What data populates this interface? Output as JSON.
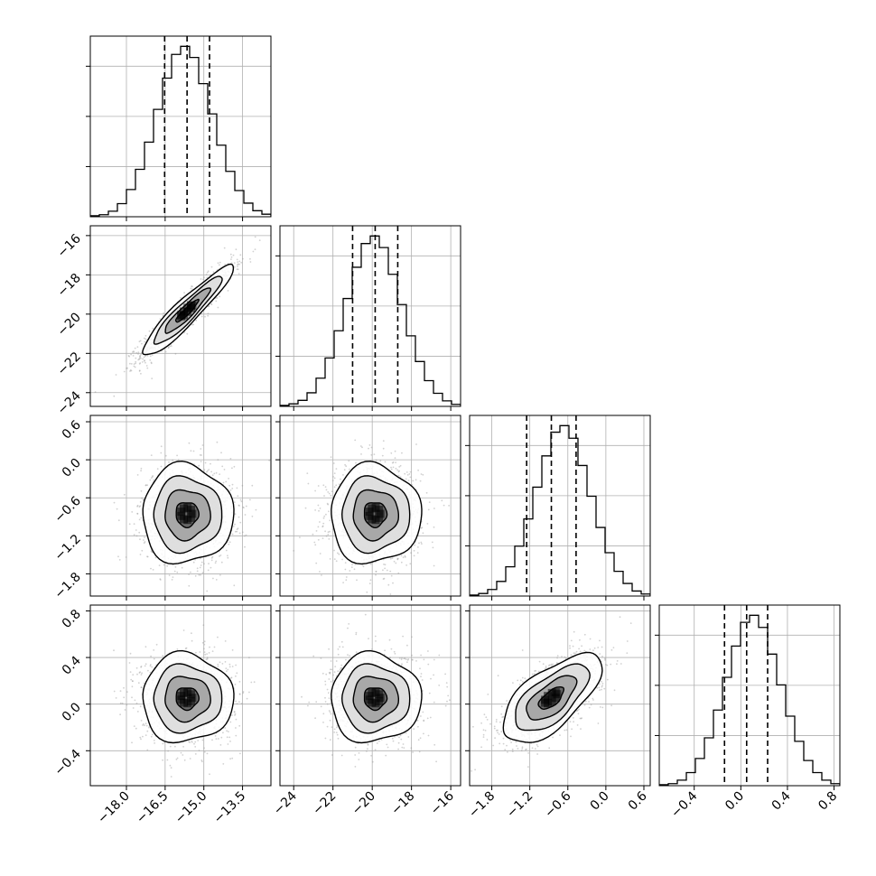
{
  "chart_data": {
    "type": "corner",
    "title": "",
    "parameters": [
      {
        "ticks": [
          -18.0,
          -16.5,
          -15.0,
          -13.5
        ],
        "tick_labels": [
          "−18.0",
          "−16.5",
          "−15.0",
          "−13.5"
        ],
        "range": [
          -19.4,
          -12.4
        ],
        "quantiles": [
          -16.52,
          -15.65,
          -14.78
        ],
        "mean": -15.65,
        "sd": 0.88,
        "histogram_counts": [
          0.2,
          0.4,
          1.1,
          2.6,
          5.4,
          9.4,
          14.8,
          21.3,
          27.5,
          32.2,
          33.8,
          31.6,
          26.4,
          20.4,
          14.2,
          9.0,
          5.2,
          2.7,
          1.2,
          0.5
        ]
      },
      {
        "ticks": [
          -24,
          -22,
          -20,
          -18,
          -16
        ],
        "tick_labels": [
          "−24",
          "−22",
          "−20",
          "−18",
          "−16"
        ],
        "range": [
          -24.7,
          -15.5
        ],
        "quantiles": [
          -21.0,
          -19.85,
          -18.7
        ],
        "mean": -19.85,
        "sd": 1.15,
        "histogram_counts": [
          0.2,
          0.5,
          1.2,
          2.7,
          5.6,
          9.6,
          15.0,
          21.4,
          27.6,
          32.3,
          33.8,
          31.5,
          26.2,
          20.2,
          14.0,
          8.9,
          5.1,
          2.6,
          1.1,
          0.4
        ]
      },
      {
        "ticks": [
          -1.8,
          -1.2,
          -0.6,
          0.0,
          0.6
        ],
        "tick_labels": [
          "−1.8",
          "−1.2",
          "−0.6",
          "0.0",
          "0.6"
        ],
        "range": [
          -2.15,
          0.7
        ],
        "quantiles": [
          -1.25,
          -0.86,
          -0.47
        ],
        "mean": -0.86,
        "sd": 0.39,
        "histogram_counts": [
          0.2,
          0.5,
          1.3,
          2.9,
          5.8,
          9.9,
          15.3,
          21.6,
          27.8,
          32.5,
          33.8,
          31.3,
          25.9,
          19.8,
          13.6,
          8.6,
          4.9,
          2.5,
          1.0,
          0.4
        ]
      },
      {
        "ticks": [
          -0.4,
          0.0,
          0.4,
          0.8
        ],
        "tick_labels": [
          "−0.4",
          "0.0",
          "0.4",
          "0.8"
        ],
        "range": [
          -0.7,
          0.85
        ],
        "quantiles": [
          -0.14,
          0.05,
          0.23
        ],
        "mean": 0.05,
        "sd": 0.19,
        "histogram_counts": [
          0.2,
          0.4,
          1.1,
          2.6,
          5.4,
          9.5,
          15.0,
          21.5,
          27.7,
          32.4,
          33.8,
          31.4,
          26.1,
          20.0,
          13.8,
          8.8,
          5.0,
          2.6,
          1.1,
          0.4
        ]
      }
    ],
    "correlations": [
      [
        1.0,
        0.93,
        0.0,
        0.0
      ],
      [
        0.93,
        1.0,
        0.0,
        0.0
      ],
      [
        0.0,
        0.0,
        1.0,
        0.65
      ],
      [
        0.0,
        0.0,
        0.65,
        1.0
      ]
    ],
    "contour_levels_sigma": [
      0.5,
      1.0,
      1.5,
      2.0
    ],
    "grid": true,
    "colors": {
      "frame": "#000000",
      "grid": "#b0b0b0",
      "histogram": "#000000",
      "quantile_line": "#000000",
      "scatter_points": "#9a9a9a",
      "contour": "#000000",
      "density_low": "#ffffff",
      "density_high": "#000000"
    }
  }
}
